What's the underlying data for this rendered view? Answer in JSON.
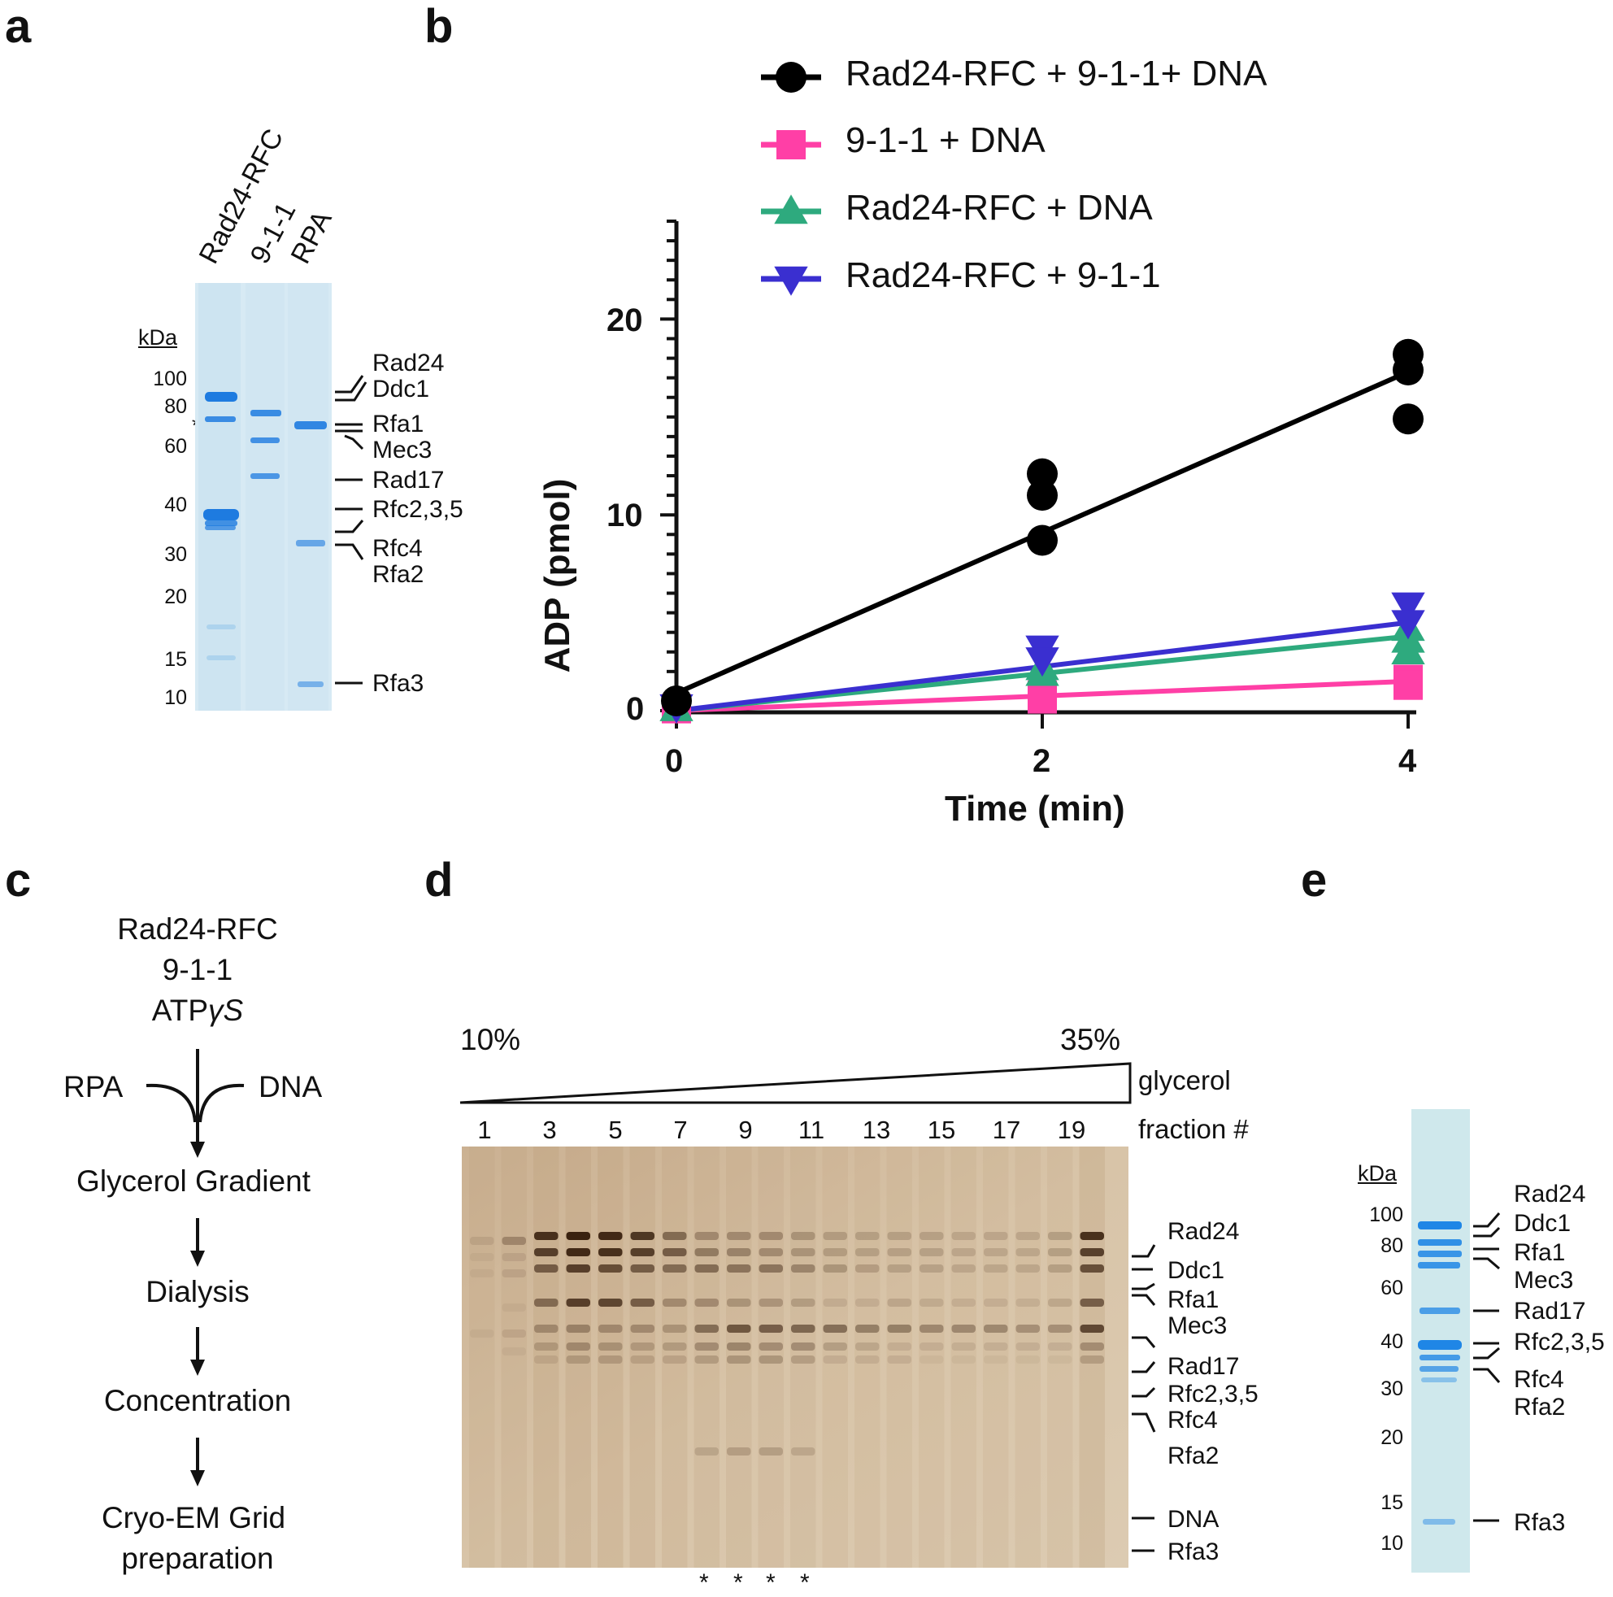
{
  "panel_letters": {
    "a": "a",
    "b": "b",
    "c": "c",
    "d": "d",
    "e": "e"
  },
  "panel_a": {
    "kda": "kDa",
    "markers": [
      "100",
      "80",
      "60",
      "40",
      "30",
      "20",
      "15",
      "10"
    ],
    "asterisk": "*",
    "lanes": [
      "Rad24-RFC",
      "9-1-1",
      "RPA"
    ],
    "bands": [
      "Rad24",
      "Ddc1",
      "Rfa1",
      "Mec3",
      "Rad17",
      "Rfc2,3,5",
      "Rfc4",
      "Rfa2",
      "Rfa3"
    ]
  },
  "panel_b": {
    "ylabel": "ADP (pmol)",
    "xlabel": "Time (min)",
    "yticks": [
      "0",
      "10",
      "20"
    ],
    "xticks": [
      "0",
      "2",
      "4"
    ]
  },
  "chart_data": {
    "type": "scatter",
    "title": "",
    "xlabel": "Time (min)",
    "ylabel": "ADP (pmol)",
    "xlim": [
      0,
      4
    ],
    "ylim": [
      0,
      25
    ],
    "x": [
      0,
      2,
      4
    ],
    "series": [
      {
        "name": "Rad24-RFC + 9-1-1+ DNA",
        "color": "#000000",
        "marker": "circle",
        "points": [
          [
            0,
            0.5
          ],
          [
            2,
            12.1
          ],
          [
            2,
            11.0
          ],
          [
            2,
            8.7
          ],
          [
            4,
            18.2
          ],
          [
            4,
            17.4
          ],
          [
            4,
            14.9
          ]
        ],
        "fit": [
          [
            0,
            0.9
          ],
          [
            4,
            17.3
          ]
        ]
      },
      {
        "name": "9-1-1 + DNA",
        "color": "#ff3fa6",
        "marker": "square",
        "points": [
          [
            0,
            0.1
          ],
          [
            2,
            0.8
          ],
          [
            2,
            0.6
          ],
          [
            4,
            1.6
          ],
          [
            4,
            1.3
          ]
        ],
        "fit": [
          [
            0,
            0.0
          ],
          [
            4,
            1.5
          ]
        ]
      },
      {
        "name": "Rad24-RFC + DNA",
        "color": "#2eaa7e",
        "marker": "triangle-up",
        "points": [
          [
            0,
            0.1
          ],
          [
            2,
            2.2
          ],
          [
            2,
            1.9
          ],
          [
            4,
            4.2
          ],
          [
            4,
            3.6
          ],
          [
            4,
            3.0
          ]
        ],
        "fit": [
          [
            0,
            0.0
          ],
          [
            4,
            3.8
          ]
        ]
      },
      {
        "name": "Rad24-RFC + 9-1-1",
        "color": "#3a2fd0",
        "marker": "triangle-down",
        "points": [
          [
            0,
            0.2
          ],
          [
            2,
            3.2
          ],
          [
            2,
            2.6
          ],
          [
            4,
            5.4
          ],
          [
            4,
            4.5
          ]
        ],
        "fit": [
          [
            0,
            0.0
          ],
          [
            4,
            4.5
          ]
        ]
      }
    ]
  },
  "panel_c": {
    "inputs": [
      "Rad24-RFC",
      "9-1-1",
      "ATP"
    ],
    "gamma_s": "γS",
    "left": "RPA",
    "right": "DNA",
    "steps": [
      "Glycerol Gradient",
      "Dialysis",
      "Concentration",
      "Cryo-EM Grid",
      "preparation"
    ]
  },
  "panel_d": {
    "gradient_low": "10%",
    "gradient_high": "35%",
    "gradient_label": "glycerol",
    "fraction_label": "fraction #",
    "fractions": [
      "1",
      "3",
      "5",
      "7",
      "9",
      "11",
      "13",
      "15",
      "17",
      "19"
    ],
    "bands": [
      "Rad24",
      "Ddc1",
      "Rfa1",
      "Mec3",
      "Rad17",
      "Rfc2,3,5",
      "Rfc4",
      "Rfa2",
      "DNA",
      "Rfa3"
    ],
    "asterisks": [
      "*",
      "*",
      "*",
      "*"
    ]
  },
  "panel_e": {
    "kda": "kDa",
    "markers": [
      "100",
      "80",
      "60",
      "40",
      "30",
      "20",
      "15",
      "10"
    ],
    "bands": [
      "Rad24",
      "Ddc1",
      "Rfa1",
      "Mec3",
      "Rad17",
      "Rfc2,3,5",
      "Rfc4",
      "Rfa2",
      "Rfa3"
    ]
  }
}
